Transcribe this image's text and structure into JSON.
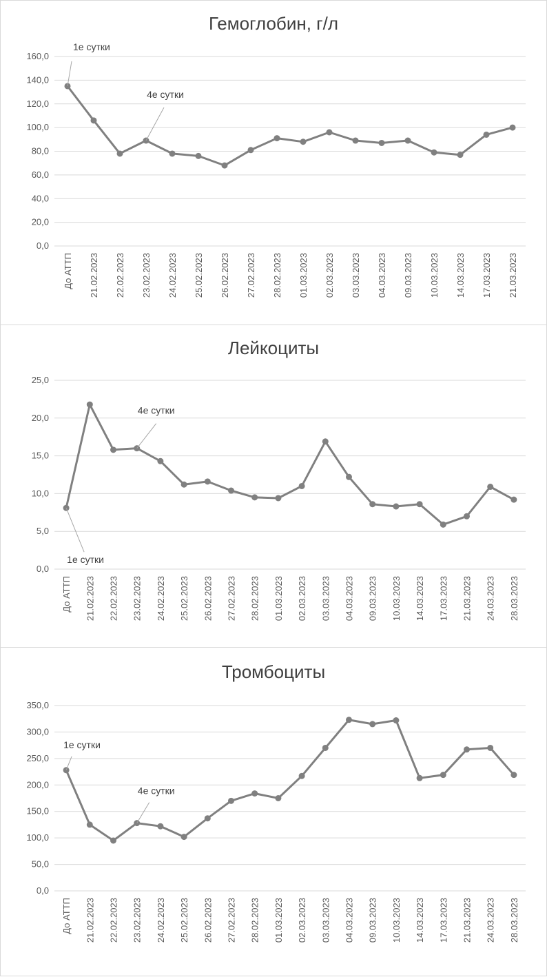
{
  "chart_data": [
    {
      "type": "line",
      "title": "Гемоглобин, г/л",
      "categories": [
        "До АТТП",
        "21.02.2023",
        "22.02.2023",
        "23.02.2023",
        "24.02.2023",
        "25.02.2023",
        "26.02.2023",
        "27.02.2023",
        "28.02.2023",
        "01.03.2023",
        "02.03.2023",
        "03.03.2023",
        "04.03.2023",
        "09.03.2023",
        "10.03.2023",
        "14.03.2023",
        "17.03.2023",
        "21.03.2023"
      ],
      "values": [
        135,
        106,
        78,
        89,
        78,
        76,
        68,
        81,
        91,
        88,
        96,
        89,
        87,
        89,
        79,
        77,
        94,
        100
      ],
      "yticks": [
        "0,0",
        "20,0",
        "40,0",
        "60,0",
        "80,0",
        "100,0",
        "120,0",
        "140,0",
        "160,0"
      ],
      "ylim": [
        0,
        160
      ],
      "color": "#808080",
      "grid": true,
      "annotations": [
        {
          "text": "1е сутки",
          "index": 0
        },
        {
          "text": "4е сутки",
          "index": 3
        }
      ]
    },
    {
      "type": "line",
      "title": "Лейкоциты",
      "categories": [
        "До АТТП",
        "21.02.2023",
        "22.02.2023",
        "23.02.2023",
        "24.02.2023",
        "25.02.2023",
        "26.02.2023",
        "27.02.2023",
        "28.02.2023",
        "01.03.2023",
        "02.03.2023",
        "03.03.2023",
        "04.03.2023",
        "09.03.2023",
        "10.03.2023",
        "14.03.2023",
        "17.03.2023",
        "21.03.2023",
        "24.03.2023",
        "28.03.2023"
      ],
      "values": [
        8.1,
        21.8,
        15.8,
        16.0,
        14.3,
        11.2,
        11.6,
        10.4,
        9.5,
        9.4,
        11.0,
        16.9,
        12.2,
        8.6,
        8.3,
        8.6,
        5.9,
        7.0,
        10.9,
        9.2
      ],
      "yticks": [
        "0,0",
        "5,0",
        "10,0",
        "15,0",
        "20,0",
        "25,0"
      ],
      "ylim": [
        0,
        25
      ],
      "color": "#808080",
      "grid": true,
      "annotations": [
        {
          "text": "1е сутки",
          "index": 0
        },
        {
          "text": "4е сутки",
          "index": 3
        }
      ]
    },
    {
      "type": "line",
      "title": "Тромбоциты",
      "categories": [
        "До АТТП",
        "21.02.2023",
        "22.02.2023",
        "23.02.2023",
        "24.02.2023",
        "25.02.2023",
        "26.02.2023",
        "27.02.2023",
        "28.02.2023",
        "01.03.2023",
        "02.03.2023",
        "03.03.2023",
        "04.03.2023",
        "09.03.2023",
        "10.03.2023",
        "14.03.2023",
        "17.03.2023",
        "21.03.2023",
        "24.03.2023",
        "28.03.2023"
      ],
      "values": [
        228,
        125,
        95,
        128,
        122,
        102,
        137,
        170,
        184,
        175,
        217,
        270,
        323,
        315,
        322,
        213,
        219,
        267,
        270,
        219
      ],
      "yticks": [
        "0,0",
        "50,0",
        "100,0",
        "150,0",
        "200,0",
        "250,0",
        "300,0",
        "350,0"
      ],
      "ylim": [
        0,
        350
      ],
      "color": "#808080",
      "grid": true,
      "annotations": [
        {
          "text": "1е сутки",
          "index": 0
        },
        {
          "text": "4е сутки",
          "index": 3
        }
      ]
    }
  ]
}
